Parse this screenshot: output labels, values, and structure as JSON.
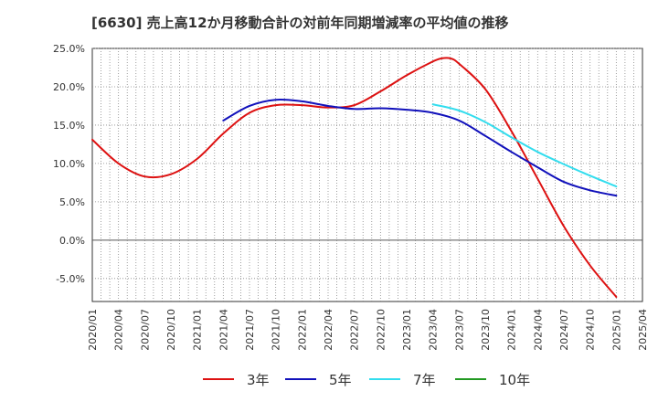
{
  "chart_data": {
    "type": "line",
    "title": "[6630]  売上高12か月移動合計の対前年同期増減率の平均値の推移",
    "xlabel": "",
    "ylabel": "",
    "ylim": [
      -8.0,
      25.0
    ],
    "y_ticks": [
      25.0,
      20.0,
      15.0,
      10.0,
      5.0,
      0.0,
      -5.0
    ],
    "y_tick_labels": [
      "25.0%",
      "20.0%",
      "15.0%",
      "10.0%",
      "5.0%",
      "0.0%",
      "-5.0%"
    ],
    "x_tick_labels": [
      "2020/01",
      "2020/04",
      "2020/07",
      "2020/10",
      "2021/01",
      "2021/04",
      "2021/07",
      "2021/10",
      "2022/01",
      "2022/04",
      "2022/07",
      "2022/10",
      "2023/01",
      "2023/04",
      "2023/07",
      "2023/10",
      "2024/01",
      "2024/04",
      "2024/07",
      "2024/10",
      "2025/01",
      "2025/04"
    ],
    "x_start": "2020/01",
    "grid": true,
    "legend_position": "bottom",
    "series": [
      {
        "name": "3年",
        "color": "#dd1111",
        "x": [
          "2020/01",
          "2020/04",
          "2020/07",
          "2020/10",
          "2021/01",
          "2021/04",
          "2021/07",
          "2021/10",
          "2022/01",
          "2022/04",
          "2022/07",
          "2022/10",
          "2023/01",
          "2023/04",
          "2023/05",
          "2023/06",
          "2023/07",
          "2023/10",
          "2024/01",
          "2024/04",
          "2024/07",
          "2024/10",
          "2025/01"
        ],
        "values": [
          13.1,
          10.0,
          8.3,
          8.6,
          10.6,
          13.9,
          16.6,
          17.6,
          17.6,
          17.3,
          17.6,
          19.4,
          21.5,
          23.3,
          23.7,
          23.7,
          23.0,
          19.7,
          14.2,
          8.0,
          1.8,
          -3.3,
          -7.4
        ]
      },
      {
        "name": "5年",
        "color": "#1111bb",
        "x": [
          "2021/04",
          "2021/07",
          "2021/10",
          "2022/01",
          "2022/04",
          "2022/07",
          "2022/10",
          "2023/01",
          "2023/04",
          "2023/07",
          "2023/10",
          "2024/01",
          "2024/04",
          "2024/07",
          "2024/10",
          "2025/01"
        ],
        "values": [
          15.6,
          17.5,
          18.3,
          18.1,
          17.5,
          17.1,
          17.2,
          17.0,
          16.6,
          15.6,
          13.6,
          11.5,
          9.5,
          7.6,
          6.5,
          5.8
        ]
      },
      {
        "name": "7年",
        "color": "#33ddee",
        "x": [
          "2023/04",
          "2023/07",
          "2023/10",
          "2024/01",
          "2024/04",
          "2024/07",
          "2024/10",
          "2025/01"
        ],
        "values": [
          17.7,
          16.9,
          15.4,
          13.4,
          11.5,
          9.9,
          8.4,
          7.0
        ]
      },
      {
        "name": "10年",
        "color": "#229922",
        "x": [],
        "values": []
      }
    ]
  }
}
